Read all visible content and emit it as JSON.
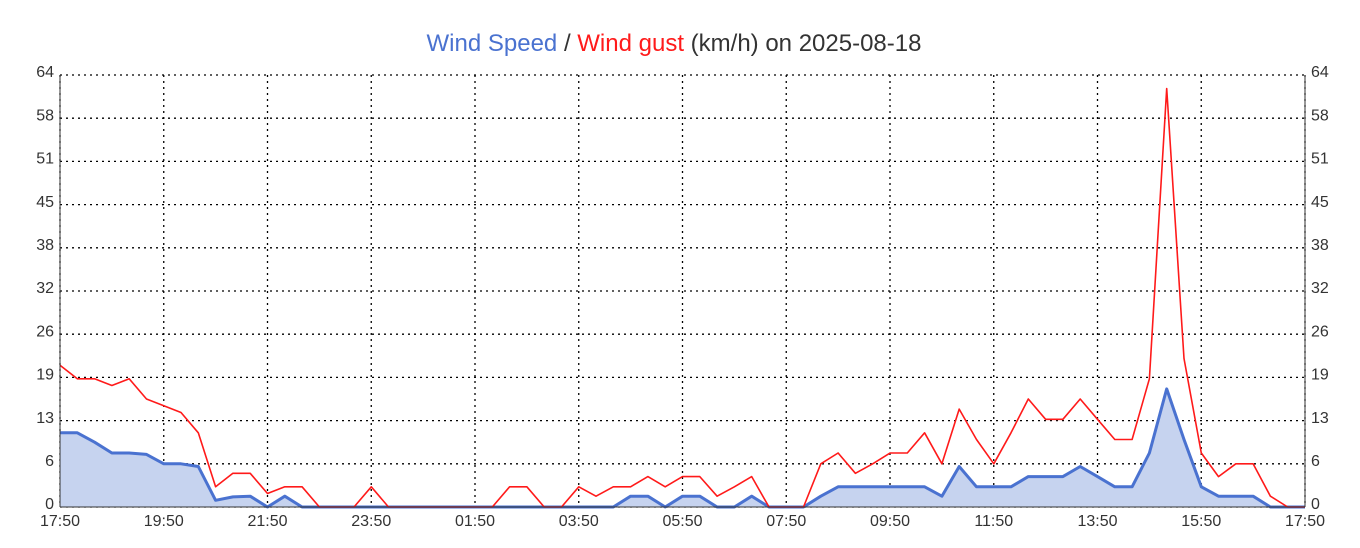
{
  "chart_data": {
    "type": "line",
    "title_separator": "/",
    "title_suffix": "(km/h) on 2025-08-18",
    "categories": [
      "17:50",
      null,
      null,
      null,
      null,
      null,
      "19:50",
      null,
      null,
      null,
      null,
      null,
      "21:50",
      null,
      null,
      null,
      null,
      null,
      "23:50",
      null,
      null,
      null,
      null,
      null,
      "01:50",
      null,
      null,
      null,
      null,
      null,
      "03:50",
      null,
      null,
      null,
      null,
      null,
      "05:50",
      null,
      null,
      null,
      null,
      null,
      "07:50",
      null,
      null,
      null,
      null,
      null,
      "09:50",
      null,
      null,
      null,
      null,
      null,
      "11:50",
      null,
      null,
      null,
      null,
      null,
      "13:50",
      null,
      null,
      null,
      null,
      null,
      "15:50",
      null,
      null,
      null,
      null,
      null,
      "17:50"
    ],
    "series": [
      {
        "name": "Wind Speed",
        "color": "#4a72d0",
        "fill": "#c6d3ef",
        "values": [
          11,
          11,
          9.6,
          8,
          8,
          7.8,
          6.4,
          6.4,
          6,
          1,
          1.5,
          1.6,
          0,
          1.6,
          0,
          0,
          0,
          0,
          0,
          0,
          0,
          0,
          0,
          0,
          0,
          0,
          0,
          0,
          0,
          0,
          0,
          0,
          0,
          1.6,
          1.6,
          0,
          1.6,
          1.6,
          0,
          0,
          1.6,
          0,
          0,
          0,
          1.6,
          3,
          3,
          3,
          3,
          3,
          3,
          1.6,
          6,
          3,
          3,
          3,
          4.5,
          4.5,
          4.5,
          6,
          4.5,
          3,
          3,
          8,
          17.5,
          10,
          3,
          1.6,
          1.6,
          1.6,
          0,
          0,
          0
        ]
      },
      {
        "name": "Wind gust",
        "color": "#ff1a1a",
        "values": [
          21,
          19,
          19,
          18,
          19,
          16,
          15,
          14,
          11,
          3,
          5,
          5,
          2,
          3,
          3,
          0,
          0,
          0,
          3,
          0,
          0,
          0,
          0,
          0,
          0,
          0,
          3,
          3,
          0,
          0,
          3,
          1.6,
          3,
          3,
          4.5,
          3,
          4.5,
          4.5,
          1.6,
          3,
          4.5,
          0,
          0,
          0,
          6.4,
          8,
          5,
          6.4,
          8,
          8,
          11,
          6.4,
          14.5,
          10,
          6.4,
          11,
          16,
          13,
          13,
          16,
          13,
          10,
          10,
          19,
          62,
          22,
          8,
          4.5,
          6.4,
          6.4,
          1.6,
          0,
          0
        ]
      }
    ],
    "ylim": [
      0,
      64
    ],
    "yticks": [
      0,
      {
        "value": 6.4,
        "label": "6"
      },
      {
        "value": 12.8,
        "label": "13"
      },
      {
        "value": 19.2,
        "label": "19"
      },
      {
        "value": 25.6,
        "label": "26"
      },
      32,
      {
        "value": 38.4,
        "label": "38"
      },
      {
        "value": 44.8,
        "label": "45"
      },
      {
        "value": 51.2,
        "label": "51"
      },
      {
        "value": 57.6,
        "label": "58"
      },
      64
    ],
    "grid": true
  }
}
